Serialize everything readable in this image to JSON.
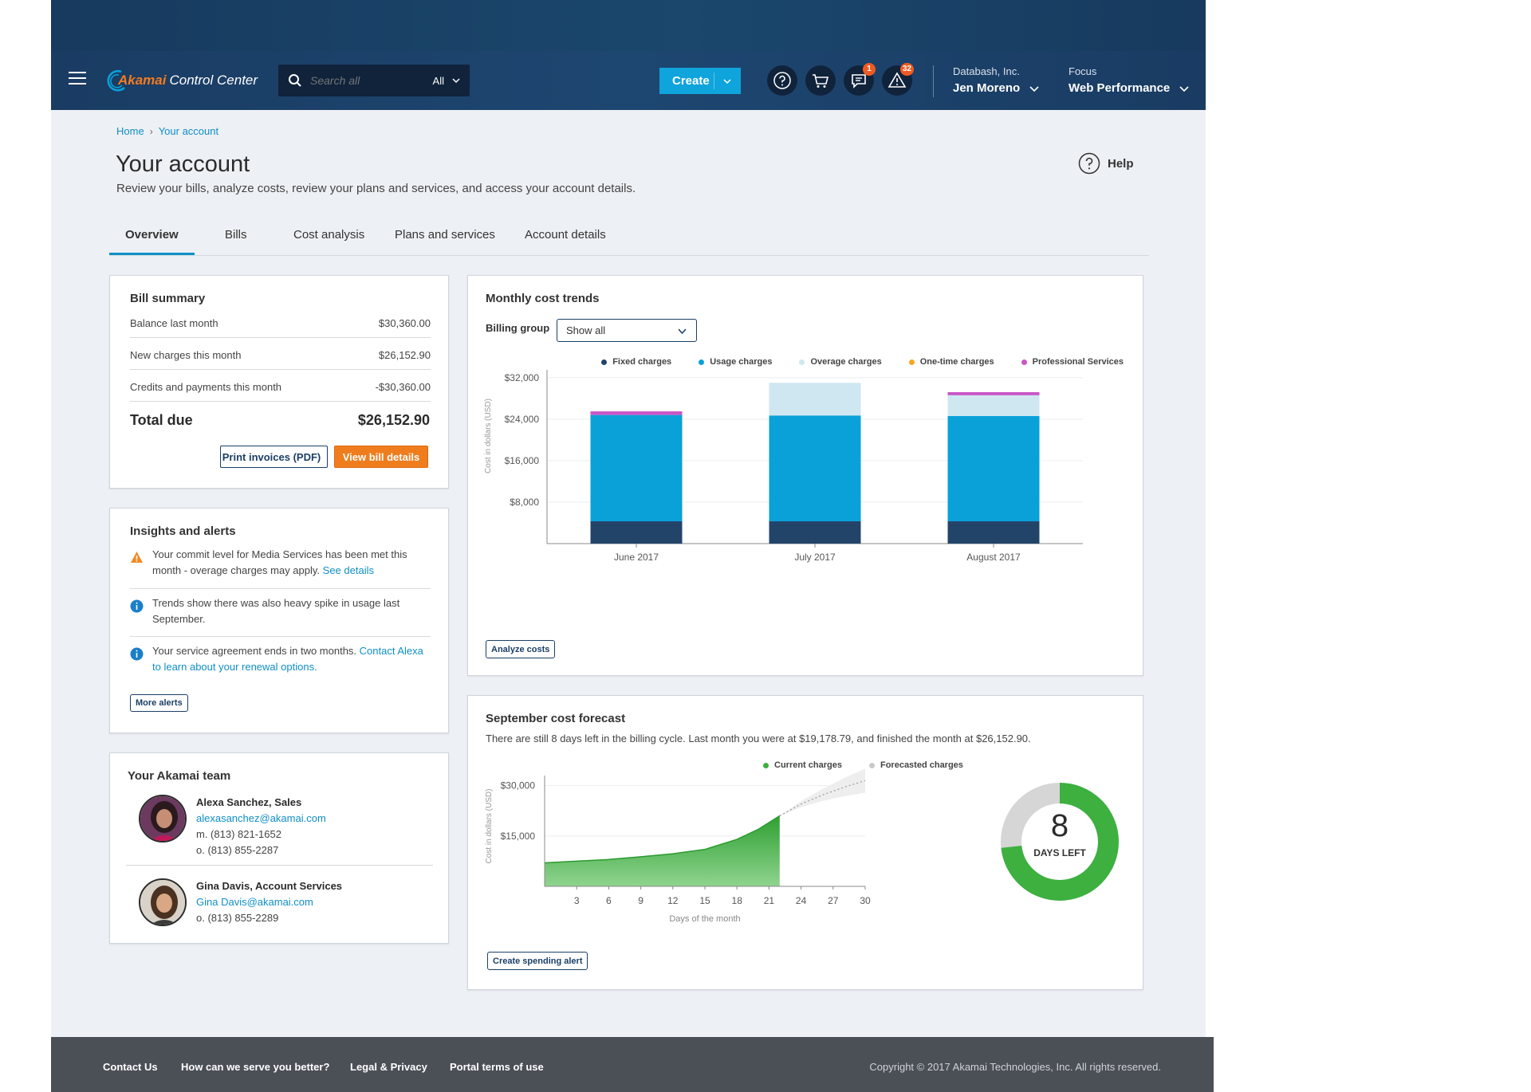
{
  "header": {
    "brand": "Akamai",
    "product": "Control Center",
    "search_placeholder": "Search all",
    "search_scope": "All",
    "create_label": "Create",
    "messages_badge": "1",
    "alerts_badge": "32",
    "account_company": "Databash, Inc.",
    "account_user": "Jen Moreno",
    "focus_label": "Focus",
    "focus_value": "Web Performance"
  },
  "breadcrumb": [
    "Home",
    "Your account"
  ],
  "page": {
    "title": "Your account",
    "subtitle": "Review your bills, analyze costs, review your plans and services, and access your account details.",
    "help_label": "Help"
  },
  "tabs": [
    {
      "label": "Overview",
      "active": true
    },
    {
      "label": "Bills",
      "active": false
    },
    {
      "label": "Cost analysis",
      "active": false
    },
    {
      "label": "Plans and services",
      "active": false
    },
    {
      "label": "Account details",
      "active": false
    }
  ],
  "bill_summary": {
    "title": "Bill summary",
    "rows": [
      {
        "label": "Balance last month",
        "amount": "$30,360.00"
      },
      {
        "label": "New charges this month",
        "amount": "$26,152.90"
      },
      {
        "label": "Credits and payments this month",
        "amount": "-$30,360.00"
      }
    ],
    "total_label": "Total due",
    "total_amount": "$26,152.90",
    "print_button": "Print invoices (PDF)",
    "details_button": "View bill details"
  },
  "insights": {
    "title": "Insights and alerts",
    "alerts": [
      {
        "type": "warning",
        "text": "Your commit level for Media Services has been met this month - overage charges may apply.",
        "link": "See details"
      },
      {
        "type": "info",
        "text": "Trends show there was also heavy spike in usage last September.",
        "link": ""
      },
      {
        "type": "info",
        "text": "Your service agreement ends in two months.",
        "link": "Contact Alexa to learn about your renewal options."
      }
    ],
    "more_button": "More alerts"
  },
  "team": {
    "title": "Your Akamai team",
    "members": [
      {
        "name": "Alexa Sanchez, Sales",
        "email": "alexasanchez@akamai.com",
        "phone1": "m. (813) 821-1652",
        "phone2": "o. (813) 855-2287"
      },
      {
        "name": "Gina Davis, Account Services",
        "email": "Gina Davis@akamai.com",
        "phone1": "o. (813) 855-2289",
        "phone2": ""
      }
    ]
  },
  "monthly": {
    "title": "Monthly cost trends",
    "billing_group_label": "Billing group",
    "billing_group_value": "Show all",
    "analyze_button": "Analyze costs"
  },
  "forecast": {
    "title": "September cost forecast",
    "description": "There are still 8 days left in the billing cycle. Last month you were at $19,178.79, and finished the month at $26,152.90.",
    "days_left": "8",
    "days_left_label": "DAYS LEFT",
    "days_elapsed_fraction": 0.733,
    "alert_button": "Create spending alert"
  },
  "chart_data": [
    {
      "type": "bar",
      "stacked": true,
      "title": "Monthly cost trends",
      "ylabel": "Cost in dollars (USD)",
      "categories": [
        "June 2017",
        "July 2017",
        "August 2017"
      ],
      "yticks": [
        8000,
        16000,
        24000,
        32000
      ],
      "ytick_labels": [
        "$8,000",
        "$16,000",
        "$24,000",
        "$32,000"
      ],
      "ylim": [
        0,
        33500
      ],
      "legend_position": "top-right",
      "series": [
        {
          "name": "Fixed charges",
          "color": "#234469",
          "values": [
            4300,
            4300,
            4300
          ]
        },
        {
          "name": "Usage charges",
          "color": "#0aa1d9",
          "values": [
            20500,
            20400,
            20300
          ]
        },
        {
          "name": "Overage charges",
          "color": "#cfe7f1",
          "values": [
            0,
            6300,
            4000
          ]
        },
        {
          "name": "One-time charges",
          "color": "#f5a623",
          "values": [
            0,
            0,
            0
          ]
        },
        {
          "name": "Professional Services",
          "color": "#c957c6",
          "values": [
            700,
            0,
            600
          ]
        }
      ]
    },
    {
      "type": "area",
      "title": "September cost forecast",
      "xlabel": "Days of the month",
      "ylabel": "Cost in dollars (USD)",
      "xticks": [
        3,
        6,
        9,
        12,
        15,
        18,
        21,
        24,
        27,
        30
      ],
      "yticks": [
        15000,
        30000
      ],
      "ytick_labels": [
        "$15,000",
        "$30,000"
      ],
      "xlim": [
        0,
        30
      ],
      "ylim": [
        0,
        33000
      ],
      "legend_position": "top-right",
      "series": [
        {
          "name": "Current charges",
          "color": "#3db03f",
          "x": [
            0,
            3,
            6,
            9,
            12,
            15,
            18,
            20,
            22
          ],
          "y": [
            7000,
            7500,
            8000,
            8800,
            9700,
            11000,
            14000,
            17000,
            21000
          ]
        },
        {
          "name": "Forecasted charges",
          "color": "#c9c9c9",
          "x": [
            22,
            24,
            26,
            28,
            30
          ],
          "y": [
            21000,
            24500,
            27200,
            29500,
            31500
          ]
        }
      ]
    }
  ],
  "footer": {
    "links": [
      "Contact Us",
      "How can we serve you better?",
      "Legal & Privacy",
      "Portal terms of use"
    ],
    "copyright": "Copyright © 2017  Akamai Technologies, Inc. All rights reserved."
  },
  "colors": {
    "accent": "#0f8fc6",
    "nav_dark": "#1a3c63",
    "orange": "#f07d1d",
    "badge": "#f05a22",
    "success": "#3db03f"
  }
}
